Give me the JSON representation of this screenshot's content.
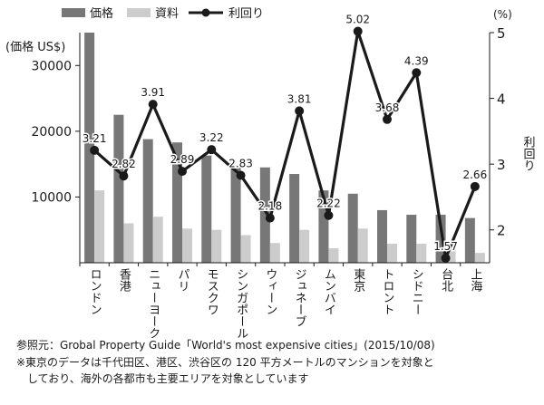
{
  "chart_data": {
    "type": "bar+line",
    "categories": [
      "ロンドン",
      "香港",
      "ニューヨーク",
      "パリ",
      "モスクワ",
      "シンガポール",
      "ウィーン",
      "ジュネーブ",
      "ムンバイ",
      "東京",
      "トロント",
      "シドニー",
      "台北",
      "上海"
    ],
    "series": [
      {
        "name": "価格",
        "type": "bar",
        "axis": "left",
        "color": "#777777",
        "values": [
          35000,
          22500,
          18800,
          18300,
          16300,
          14800,
          14500,
          13500,
          11000,
          10500,
          8000,
          7300,
          7300,
          6800
        ]
      },
      {
        "name": "資料",
        "type": "bar",
        "axis": "left",
        "color": "#cccccc",
        "values": [
          11000,
          6000,
          7000,
          5200,
          5000,
          4200,
          3000,
          5000,
          2200,
          5200,
          2900,
          2900,
          2000,
          1500
        ]
      },
      {
        "name": "利回り",
        "type": "line",
        "axis": "right",
        "color": "#1a1a1a",
        "values": [
          3.21,
          2.82,
          3.91,
          2.89,
          3.22,
          2.83,
          2.18,
          3.81,
          2.22,
          5.02,
          3.68,
          4.39,
          1.57,
          2.66
        ],
        "labels": [
          "3.21",
          "2.82",
          "3.91",
          "2.89",
          "3.22",
          "2.83",
          "2.18",
          "3.81",
          "2.22",
          "5.02",
          "3.68",
          "4.39",
          "1.57",
          "2.66"
        ]
      }
    ],
    "yleft": {
      "label": "(価格 US$)",
      "ticks": [
        10000,
        20000,
        30000
      ],
      "tick_labels": [
        "10000",
        "20000",
        "30000"
      ],
      "range": [
        0,
        35000
      ]
    },
    "yright": {
      "unit": "(%)",
      "label": "利回り",
      "ticks": [
        2,
        3,
        4,
        5
      ],
      "tick_labels": [
        "2",
        "3",
        "4",
        "5"
      ],
      "range": [
        1.5,
        5.0
      ]
    },
    "legend": [
      {
        "name": "価格",
        "kind": "bar",
        "color": "#777777"
      },
      {
        "name": "資料",
        "kind": "bar",
        "color": "#cccccc"
      },
      {
        "name": "利回り",
        "kind": "line",
        "color": "#1a1a1a"
      }
    ],
    "legend_position": "top-left",
    "grid": false
  },
  "notes": {
    "source": "参照元：Grobal Property Guide「World's most expensive cities」(2015/10/08)",
    "footnote_line1": "※東京のデータは千代田区、港区、渋谷区の 120 平方メートルのマンションを対象と",
    "footnote_line2": "しており、海外の各都市も主要エリアを対象としています"
  }
}
